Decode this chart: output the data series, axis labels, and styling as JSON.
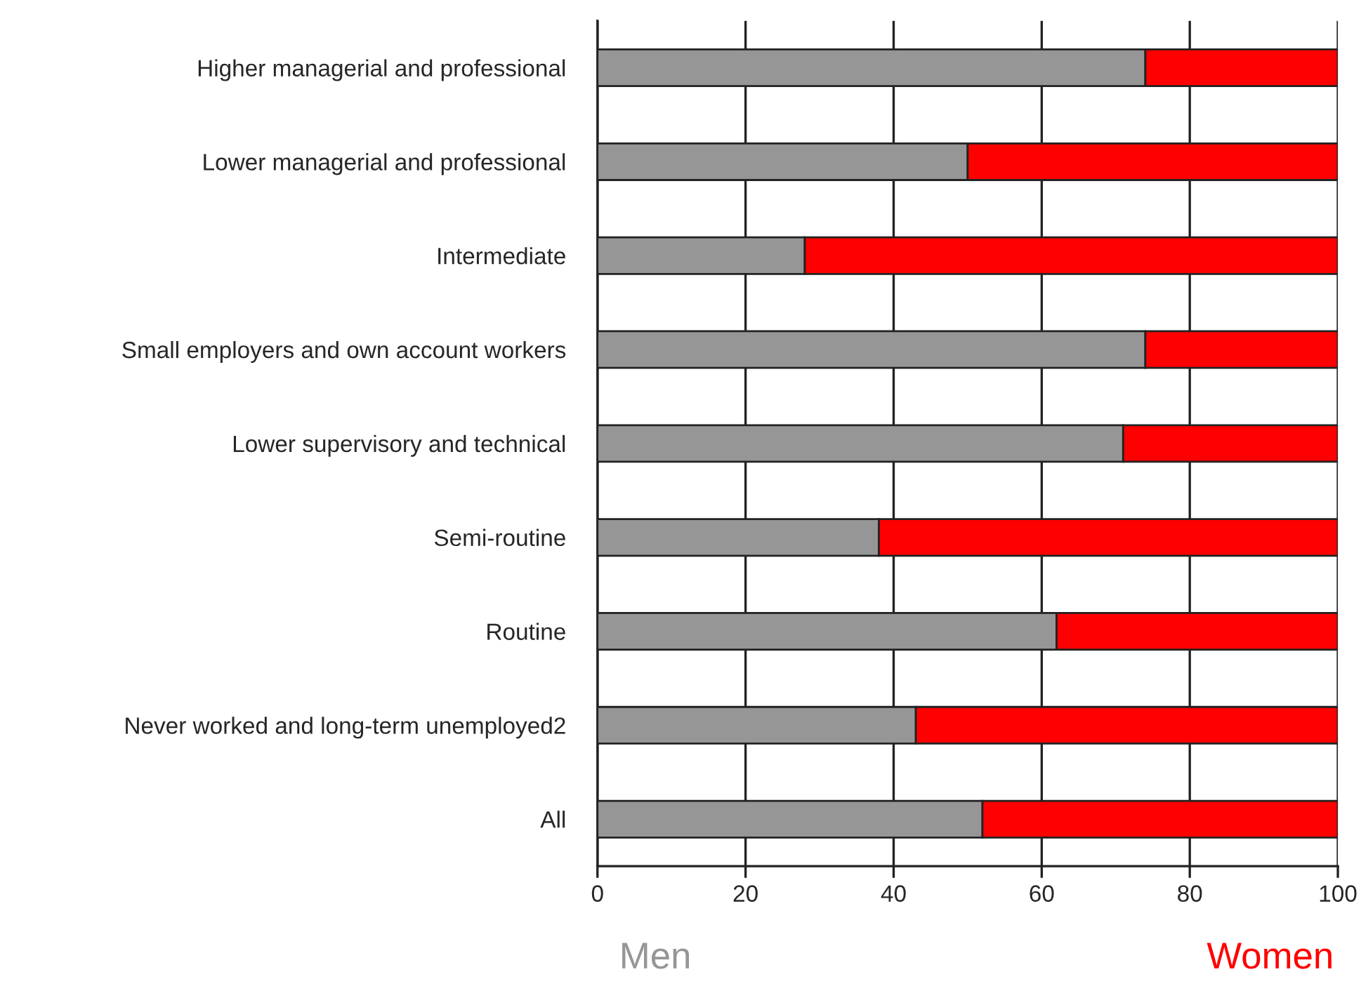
{
  "chart_data": {
    "type": "bar",
    "orientation": "horizontal",
    "stacked": true,
    "categories": [
      "Higher managerial and professional",
      "Lower managerial and professional",
      "Intermediate",
      "Small employers and own account workers",
      "Lower supervisory and technical",
      "Semi-routine",
      "Routine",
      "Never worked and long-term unemployed2",
      "All"
    ],
    "series": [
      {
        "name": "Men",
        "color": "#969696",
        "values": [
          74,
          50,
          28,
          74,
          71,
          38,
          62,
          43,
          52
        ]
      },
      {
        "name": "Women",
        "color": "#ff0000",
        "values": [
          26,
          50,
          72,
          26,
          29,
          62,
          38,
          57,
          48
        ]
      }
    ],
    "xlim": [
      0,
      100
    ],
    "xticks": [
      0,
      20,
      40,
      60,
      80,
      100
    ],
    "grid": "x",
    "legend": "bottom"
  }
}
